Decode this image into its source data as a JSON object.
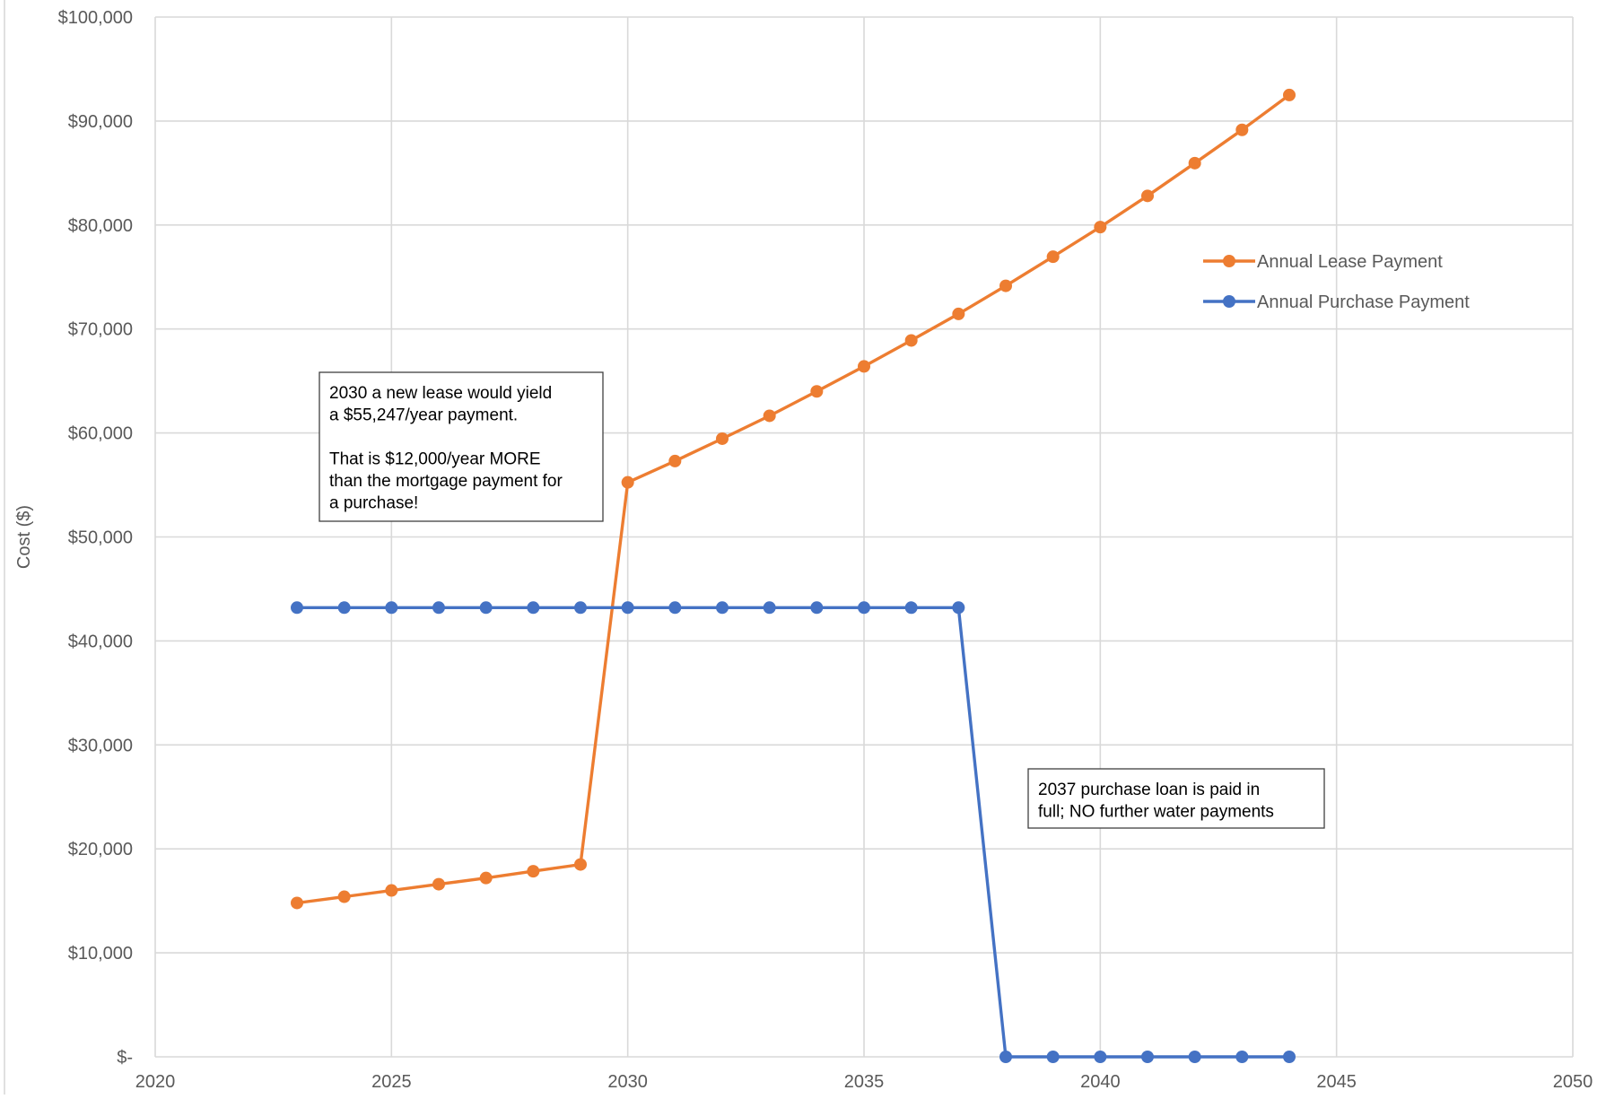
{
  "chart_data": {
    "type": "line",
    "title": "",
    "xlabel": "",
    "ylabel": "Cost ($)",
    "xlim": [
      2020,
      2050
    ],
    "ylim": [
      0,
      100000
    ],
    "x_ticks": [
      2020,
      2025,
      2030,
      2035,
      2040,
      2045,
      2050
    ],
    "y_ticks": [
      0,
      10000,
      20000,
      30000,
      40000,
      50000,
      60000,
      70000,
      80000,
      90000,
      100000
    ],
    "y_tick_labels": [
      "$-",
      "$10,000",
      "$20,000",
      "$30,000",
      "$40,000",
      "$50,000",
      "$60,000",
      "$70,000",
      "$80,000",
      "$90,000",
      "$100,000"
    ],
    "grid": true,
    "legend_position": "top-right",
    "x": [
      2023,
      2024,
      2025,
      2026,
      2027,
      2028,
      2029,
      2030,
      2031,
      2032,
      2033,
      2034,
      2035,
      2036,
      2037,
      2038,
      2039,
      2040,
      2041,
      2042,
      2043,
      2044
    ],
    "series": [
      {
        "name": "Annual Lease Payment",
        "color": "#ED7D31",
        "values": [
          14800,
          15400,
          16000,
          16600,
          17200,
          17850,
          18500,
          55247,
          57300,
          59450,
          61650,
          64000,
          66400,
          68900,
          71450,
          74150,
          76950,
          79800,
          82800,
          85950,
          89150,
          92500
        ]
      },
      {
        "name": "Annual Purchase Payment",
        "color": "#4472C4",
        "values": [
          43200,
          43200,
          43200,
          43200,
          43200,
          43200,
          43200,
          43200,
          43200,
          43200,
          43200,
          43200,
          43200,
          43200,
          43200,
          0,
          0,
          0,
          0,
          0,
          0,
          0
        ]
      }
    ],
    "annotations": [
      {
        "lines": [
          "2030 a new lease would yield",
          "a $55,247/year payment.",
          "",
          "That is $12,000/year MORE",
          "than the mortgage payment for",
          "a purchase!"
        ]
      },
      {
        "lines": [
          "2037 purchase loan is paid in",
          "full; NO further water payments"
        ]
      }
    ]
  }
}
